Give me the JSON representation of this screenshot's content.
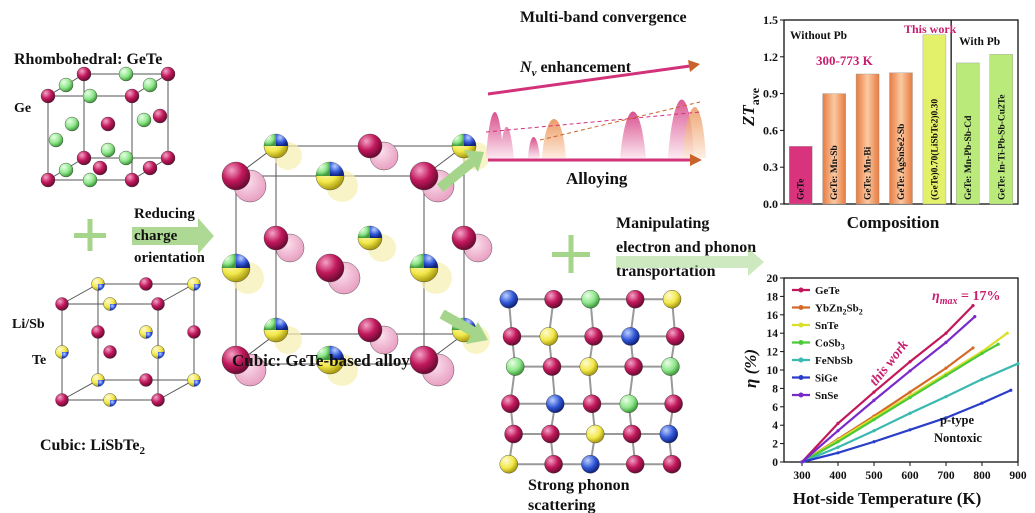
{
  "labels": {
    "rhombohedral": "Rhombohedral: GeTe",
    "ge": "Ge",
    "li_sb": "Li/Sb",
    "te": "Te",
    "cubic_lisbte2": "Cubic: LiSbTe",
    "cubic_lisbte2_sub": "2",
    "reducing": [
      "Reducing",
      "charge",
      "orientation"
    ],
    "cubic_alloy": "Cubic: GeTe-based alloy",
    "multiband": "Multi-band convergence",
    "nv_enh_main": "N",
    "nv_enh_sub": "v",
    "nv_enh_rest": " enhancement",
    "alloying": "Alloying",
    "manip": [
      "Manipulating",
      "electron and phonon",
      "transportation"
    ],
    "phonon": [
      "Strong phonon",
      "scattering"
    ]
  },
  "colors": {
    "ge": "#c2185b",
    "te": "#8ee68a",
    "arrow_green": "#a5d58a",
    "arrow_brown": "#c8642a",
    "arrow_pink": "#d2327a",
    "bar_fill": "#f0a870",
    "bar_gete": "#d9337d",
    "bar_work": "#e3f06a",
    "bar_pb": "#b9ea7a",
    "accent": "#c81e6e"
  },
  "chart_data": [
    {
      "type": "bar",
      "ylabel_main": "ZT",
      "ylabel_sub": "ave",
      "xlabel": "Composition",
      "ylim": [
        0.0,
        1.5
      ],
      "yticks": [
        "0.0",
        "0.3",
        "0.6",
        "0.9",
        "1.2",
        "1.5"
      ],
      "group_left": "Without Pb",
      "group_right": "With Pb",
      "range_note": "300-773 K",
      "this_work": "This work",
      "categories": [
        "GeTe",
        "GeTe: Mn-Sb",
        "GeTe: Mn-Bi",
        "GeTe: AgSnSe2-Sb",
        "(GeTe)0.70(LiSbTe2)0.30",
        "GeTe: Mn-Pb-Sb-Cd",
        "GeTe: In-Ti-Pb-Sb-Cu2Te"
      ],
      "values": [
        0.47,
        0.9,
        1.06,
        1.07,
        1.38,
        1.15,
        1.22
      ]
    },
    {
      "type": "line",
      "xlabel": "Hot-side Temperature (K)",
      "ylabel": "η (%)",
      "xlim": [
        250,
        900
      ],
      "ylim": [
        0,
        20
      ],
      "xticks": [
        "300",
        "400",
        "500",
        "600",
        "700",
        "800",
        "900"
      ],
      "yticks": [
        "0",
        "2",
        "4",
        "6",
        "8",
        "10",
        "12",
        "14",
        "16",
        "18",
        "20"
      ],
      "annotation_max_main": "η",
      "annotation_max_sub": "max",
      "annotation_max_rest": " = 17%",
      "annotation_work": "this work",
      "note": [
        "p-type",
        "Nontoxic"
      ],
      "series": [
        {
          "name": "GeTe",
          "color": "#c2185b",
          "x": [
            300,
            400,
            500,
            600,
            700,
            775
          ],
          "y": [
            0,
            4.2,
            7.6,
            10.9,
            14.0,
            17.0
          ]
        },
        {
          "name": "YbZn2Sb2",
          "color": "#d36a2a",
          "x": [
            300,
            400,
            500,
            600,
            700,
            775
          ],
          "y": [
            0,
            2.5,
            5.0,
            7.6,
            10.2,
            12.4
          ]
        },
        {
          "name": "SnTe",
          "color": "#d9df2a",
          "x": [
            300,
            400,
            500,
            600,
            700,
            800,
            870
          ],
          "y": [
            0,
            2.4,
            4.8,
            7.2,
            9.6,
            12.0,
            14.0
          ]
        },
        {
          "name": "CoSb3",
          "color": "#4cc93a",
          "x": [
            300,
            400,
            500,
            600,
            700,
            800,
            845
          ],
          "y": [
            0,
            2.2,
            4.6,
            7.0,
            9.4,
            11.8,
            12.8
          ]
        },
        {
          "name": "FeNbSb",
          "color": "#3ab9b0",
          "x": [
            300,
            400,
            500,
            600,
            700,
            800,
            900
          ],
          "y": [
            0,
            1.6,
            3.4,
            5.3,
            7.1,
            9.0,
            10.7
          ]
        },
        {
          "name": "SiGe",
          "color": "#2a3ec9",
          "x": [
            300,
            400,
            500,
            600,
            700,
            800,
            880
          ],
          "y": [
            0,
            1.0,
            2.2,
            3.5,
            4.8,
            6.4,
            7.8
          ]
        },
        {
          "name": "SnSe",
          "color": "#7a2ac9",
          "x": [
            300,
            400,
            500,
            600,
            700,
            780
          ],
          "y": [
            0,
            3.4,
            6.7,
            9.9,
            13.0,
            15.8
          ]
        }
      ]
    }
  ]
}
